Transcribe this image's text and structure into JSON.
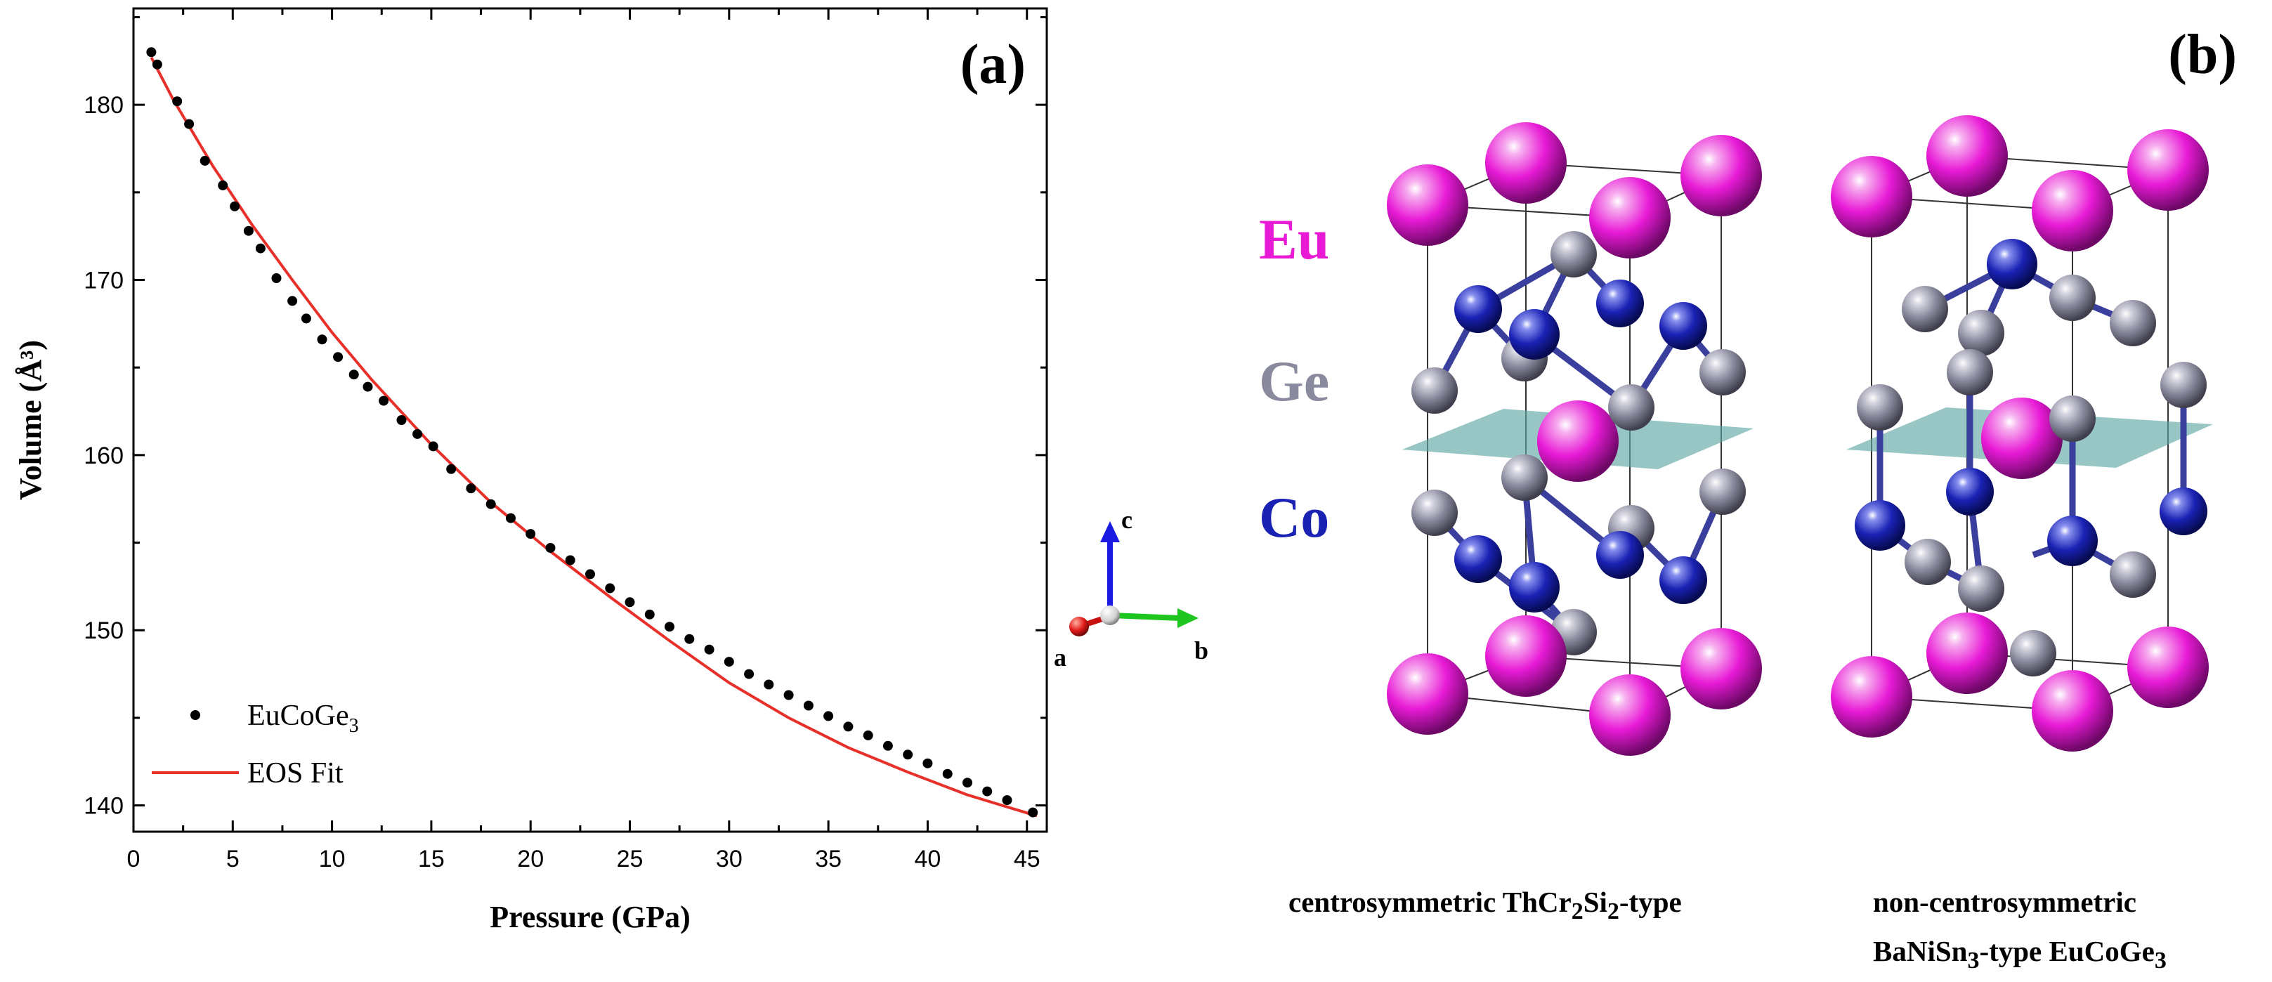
{
  "panel_a": {
    "label": "(a)",
    "legend": {
      "points": "EuCoGe",
      "points_sub": "3",
      "line": "EOS Fit"
    }
  },
  "panel_b": {
    "label": "(b)",
    "species": [
      "Eu",
      "Ge",
      "Co"
    ],
    "species_colors": {
      "Eu": "#e81ad6",
      "Ge": "#8a8a9e",
      "Co": "#1a22b4"
    },
    "axes_labels": [
      "c",
      "a",
      "b"
    ],
    "caption_left": {
      "pre": "centrosymmetric ThCr",
      "s1": "2",
      "mid": "Si",
      "s2": "2",
      "post": "-type"
    },
    "caption_right_line1": "non-centrosymmetric",
    "caption_right_line2": {
      "pre": "BaNiSn",
      "s1": "3",
      "post": "-type EuCoGe",
      "s2": "3"
    }
  },
  "chart_data": {
    "type": "scatter",
    "xlabel": "Pressure (GPa)",
    "ylabel": "Volume (Å³)",
    "xlim": [
      0,
      46
    ],
    "ylim": [
      138.5,
      185.5
    ],
    "xticks": [
      0,
      5,
      10,
      15,
      20,
      25,
      30,
      35,
      40,
      45
    ],
    "yticks": [
      140,
      150,
      160,
      170,
      180
    ],
    "series": [
      {
        "name": "EuCoGe3",
        "style": "points",
        "color": "#000000",
        "x": [
          0.9,
          1.2,
          2.2,
          2.8,
          3.6,
          4.5,
          5.1,
          5.8,
          6.4,
          7.2,
          8.0,
          8.7,
          9.5,
          10.3,
          11.1,
          11.8,
          12.6,
          13.5,
          14.3,
          15.1,
          16.0,
          17.0,
          18.0,
          19.0,
          20.0,
          21.0,
          22.0,
          23.0,
          24.0,
          25.0,
          26.0,
          27.0,
          28.0,
          29.0,
          30.0,
          31.0,
          32.0,
          33.0,
          34.0,
          35.0,
          36.0,
          37.0,
          38.0,
          39.0,
          40.0,
          41.0,
          42.0,
          43.0,
          44.0,
          45.3
        ],
        "y": [
          183.0,
          182.3,
          180.2,
          178.9,
          176.8,
          175.4,
          174.2,
          172.8,
          171.8,
          170.1,
          168.8,
          167.8,
          166.6,
          165.6,
          164.6,
          163.9,
          163.1,
          162.0,
          161.2,
          160.5,
          159.2,
          158.1,
          157.2,
          156.4,
          155.5,
          154.7,
          154.0,
          153.2,
          152.4,
          151.6,
          150.9,
          150.2,
          149.5,
          148.9,
          148.2,
          147.5,
          146.9,
          146.3,
          145.7,
          145.1,
          144.5,
          144.0,
          143.4,
          142.9,
          142.4,
          141.8,
          141.3,
          140.8,
          140.3,
          139.6
        ]
      },
      {
        "name": "EOS Fit",
        "style": "line",
        "color": "#e8302a",
        "x": [
          0.9,
          2,
          4,
          6,
          8,
          10,
          12,
          15,
          18,
          21,
          24,
          27,
          30,
          33,
          36,
          39,
          42,
          45.5
        ],
        "y": [
          182.7,
          180.3,
          176.5,
          173.1,
          170.0,
          167.0,
          164.3,
          160.6,
          157.3,
          154.5,
          151.9,
          149.4,
          147.0,
          145.0,
          143.3,
          141.9,
          140.6,
          139.4
        ]
      }
    ]
  }
}
